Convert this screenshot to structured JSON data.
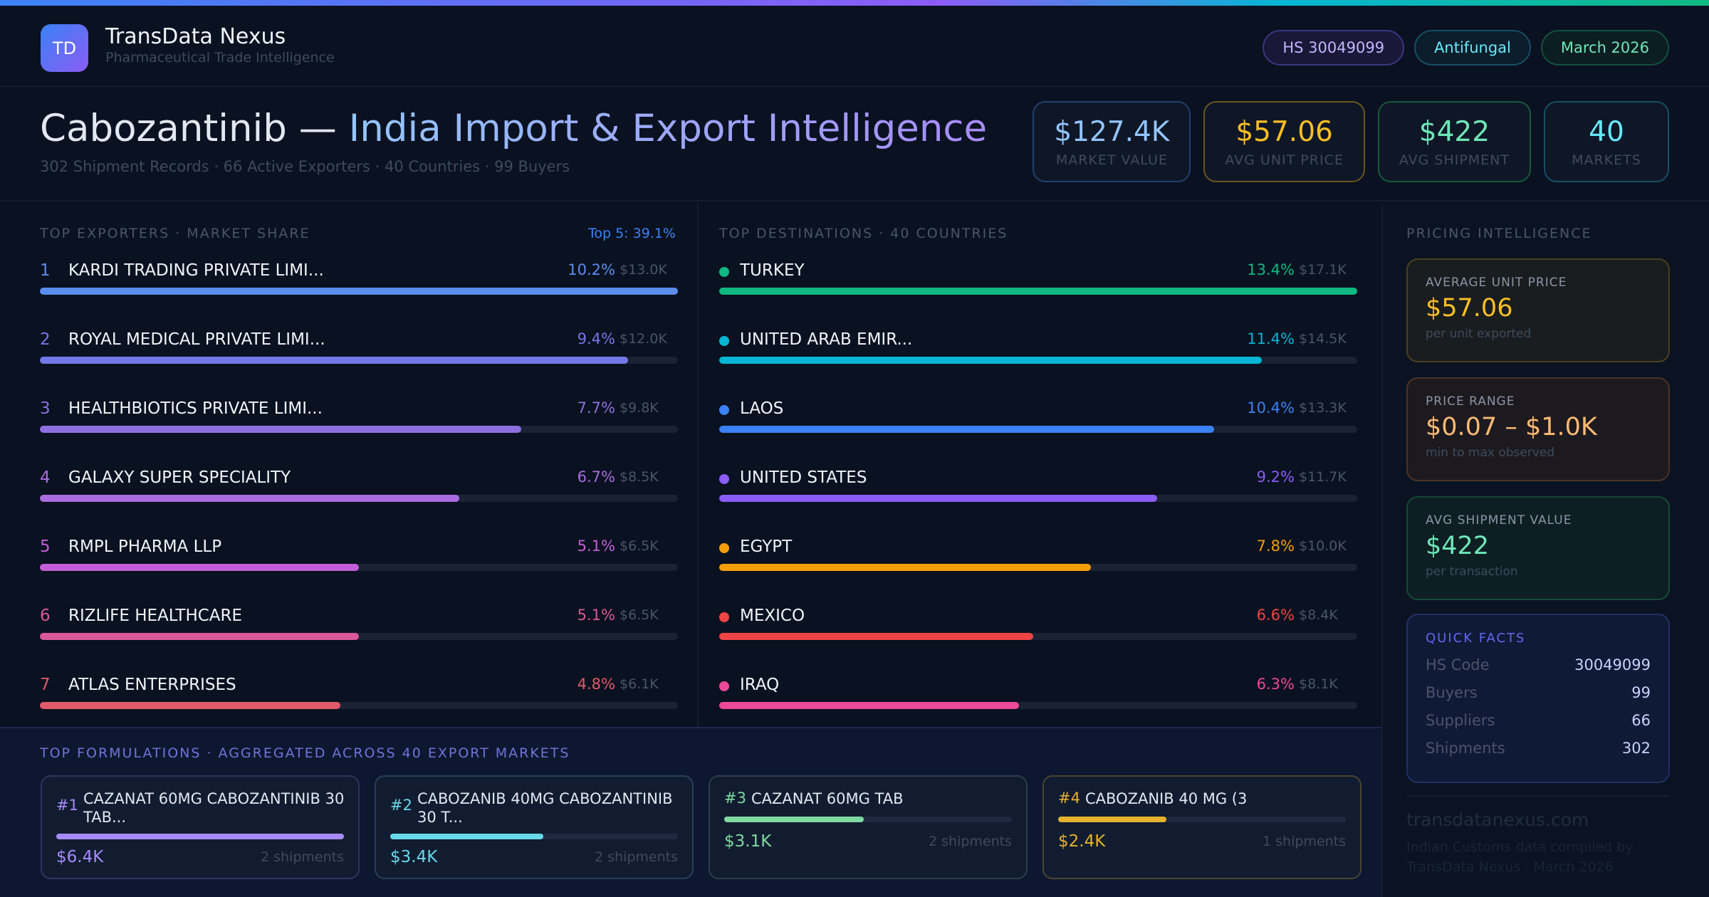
{
  "header": {
    "logo": "TD",
    "brand": "TransData Nexus",
    "tagline": "Pharmaceutical Trade Intelligence",
    "chips": [
      {
        "label": "HS 30049099",
        "color": "#c4b5fd",
        "border": "#3b3580",
        "bg": "#1a1838"
      },
      {
        "label": "Antifungal",
        "color": "#67e8f9",
        "border": "#164e63",
        "bg": "#0c1e2c"
      },
      {
        "label": "March 2026",
        "color": "#6ee7b7",
        "border": "#14503e",
        "bg": "#0c1e22"
      }
    ]
  },
  "hero": {
    "title_drug": "Cabozantinib — ",
    "title_rest": "India Import & Export Intelligence",
    "subtitle": "302 Shipment Records · 66 Active Exporters · 40 Countries · 99 Buyers",
    "stats": [
      {
        "value": "$127.4K",
        "label": "MARKET VALUE",
        "color": "#93c5fd",
        "border": "#23406e"
      },
      {
        "value": "$57.06",
        "label": "AVG UNIT PRICE",
        "color": "#fbbf24",
        "border": "#6b5520"
      },
      {
        "value": "$422",
        "label": "AVG SHIPMENT",
        "color": "#6ee7b7",
        "border": "#155a3c"
      },
      {
        "value": "40",
        "label": "MARKETS",
        "color": "#67e8f9",
        "border": "#155065"
      }
    ]
  },
  "exporters": {
    "title": "TOP EXPORTERS · MARKET SHARE",
    "top5": "Top 5: 39.1%",
    "items": [
      {
        "rank": "1",
        "name": "KARDI TRADING PRIVATE LIMI...",
        "pct": "10.2%",
        "share": 10.2,
        "value": "$13.0K",
        "color": "#5b8def"
      },
      {
        "rank": "2",
        "name": "ROYAL MEDICAL PRIVATE LIMI...",
        "pct": "9.4%",
        "share": 9.4,
        "value": "$12.0K",
        "color": "#7477e6"
      },
      {
        "rank": "3",
        "name": "HEALTHBIOTICS PRIVATE LIMI...",
        "pct": "7.7%",
        "share": 7.7,
        "value": "$9.8K",
        "color": "#8e6fe0"
      },
      {
        "rank": "4",
        "name": "GALAXY SUPER SPECIALITY",
        "pct": "6.7%",
        "share": 6.7,
        "value": "$8.5K",
        "color": "#a96de0"
      },
      {
        "rank": "5",
        "name": "RMPL PHARMA LLP",
        "pct": "5.1%",
        "share": 5.1,
        "value": "$6.5K",
        "color": "#c45ed8"
      },
      {
        "rank": "6",
        "name": "RIZLIFE HEALTHCARE",
        "pct": "5.1%",
        "share": 5.1,
        "value": "$6.5K",
        "color": "#d8589a"
      },
      {
        "rank": "7",
        "name": "ATLAS ENTERPRISES",
        "pct": "4.8%",
        "share": 4.8,
        "value": "$6.1K",
        "color": "#e05a6a"
      }
    ]
  },
  "destinations": {
    "title": "TOP DESTINATIONS · 40 COUNTRIES",
    "items": [
      {
        "name": "TURKEY",
        "pct": "13.4%",
        "share": 13.4,
        "value": "$17.1K",
        "color": "#10b981"
      },
      {
        "name": "UNITED ARAB EMIR...",
        "pct": "11.4%",
        "share": 11.4,
        "value": "$14.5K",
        "color": "#06b6d4"
      },
      {
        "name": "LAOS",
        "pct": "10.4%",
        "share": 10.4,
        "value": "$13.3K",
        "color": "#3b82f6"
      },
      {
        "name": "UNITED STATES",
        "pct": "9.2%",
        "share": 9.2,
        "value": "$11.7K",
        "color": "#8b5cf6"
      },
      {
        "name": "EGYPT",
        "pct": "7.8%",
        "share": 7.8,
        "value": "$10.0K",
        "color": "#f59e0b"
      },
      {
        "name": "MEXICO",
        "pct": "6.6%",
        "share": 6.6,
        "value": "$8.4K",
        "color": "#ef4444"
      },
      {
        "name": "IRAQ",
        "pct": "6.3%",
        "share": 6.3,
        "value": "$8.1K",
        "color": "#ec4899"
      }
    ]
  },
  "pricing": {
    "title": "PRICING INTELLIGENCE",
    "cards": [
      {
        "heading": "AVERAGE UNIT PRICE",
        "value": "$57.06",
        "sub": "per unit exported",
        "color": "#fbbf24",
        "border": "#4a4020",
        "bg": "#1a1d1f"
      },
      {
        "heading": "PRICE RANGE",
        "value": "$0.07 – $1.0K",
        "sub": "min to max observed",
        "color": "#fdba74",
        "border": "#4a3326",
        "bg": "#1d1a1f"
      },
      {
        "heading": "AVG SHIPMENT VALUE",
        "value": "$422",
        "sub": "per transaction",
        "color": "#6ee7b7",
        "border": "#154a36",
        "bg": "#0e1f24"
      }
    ],
    "quick_facts": {
      "title": "QUICK FACTS",
      "rows": [
        {
          "k": "HS Code",
          "v": "30049099"
        },
        {
          "k": "Buyers",
          "v": "99"
        },
        {
          "k": "Suppliers",
          "v": "66"
        },
        {
          "k": "Shipments",
          "v": "302"
        }
      ]
    },
    "domain": "transdatanexus.com",
    "credit": "Indian Customs data compiled by TransData Nexus · March 2026"
  },
  "formulations": {
    "title": "TOP FORMULATIONS · AGGREGATED ACROSS 40 EXPORT MARKETS",
    "items": [
      {
        "rank": "#1",
        "name": "CAZANAT 60MG CABOZANTINIB 30 TAB...",
        "value": "$6.4K",
        "amount": 6.4,
        "shipments": "2 shipments",
        "color": "#a78bfa",
        "border": "#2e3560",
        "twoline": true
      },
      {
        "rank": "#2",
        "name": "CABOZANIB 40MG CABOZANTINIB 30 T...",
        "value": "$3.4K",
        "amount": 3.4,
        "shipments": "2 shipments",
        "color": "#67d8e8",
        "border": "#24405a",
        "twoline": true
      },
      {
        "rank": "#3",
        "name": "CAZANAT 60MG TAB",
        "value": "$3.1K",
        "amount": 3.1,
        "shipments": "2 shipments",
        "color": "#7ed9a0",
        "border": "#2a3d48",
        "twoline": false
      },
      {
        "rank": "#4",
        "name": "CABOZANIB 40 MG (3",
        "value": "$2.4K",
        "amount": 2.4,
        "shipments": "1 shipments",
        "color": "#e6b12c",
        "border": "#4a4530",
        "twoline": false
      }
    ]
  }
}
